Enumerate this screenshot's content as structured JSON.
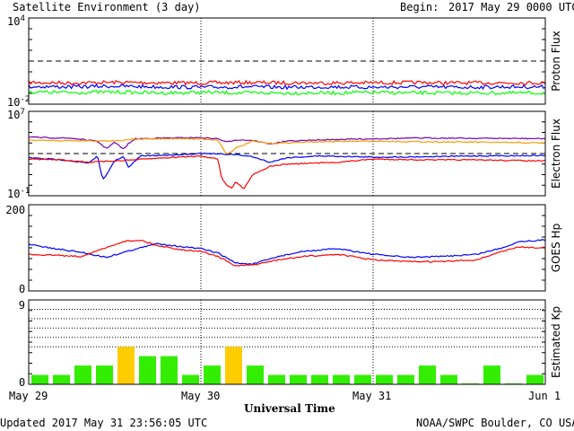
{
  "header": {
    "title": "Satellite Environment (3 day)",
    "begin_label": "Begin:",
    "begin_value": "2017 May 29 0000 UTC"
  },
  "footer": {
    "updated": "Updated 2017 May 31 23:56:05 UTC",
    "credit": "NOAA/SWPC Boulder, CO USA"
  },
  "x_axis": {
    "label": "Universal Time",
    "ticks": [
      "May 29",
      "May 30",
      "May 31",
      "Jun 1"
    ]
  },
  "chart_data": [
    {
      "type": "line",
      "ylabel": "Proton Flux",
      "yscale": "log",
      "ylim": [
        0.01,
        10000
      ],
      "ytick_labels": {
        "top": "10",
        "top_exp": "4",
        "bottom": "10",
        "bottom_exp": "-2"
      },
      "threshold": 10,
      "x_range_days": [
        0,
        3
      ],
      "series": [
        {
          "color": "#ff0000",
          "values": [
            0.32,
            0.3,
            0.33,
            0.31,
            0.3,
            0.32,
            0.31,
            0.3,
            0.31,
            0.32,
            0.3,
            0.31,
            0.3
          ]
        },
        {
          "color": "#0000ff",
          "values": [
            0.17,
            0.16,
            0.18,
            0.16,
            0.15,
            0.16,
            0.15,
            0.16,
            0.15,
            0.16,
            0.15,
            0.16,
            0.16
          ]
        },
        {
          "color": "#00ff00",
          "values": [
            0.07,
            0.065,
            0.07,
            0.06,
            0.065,
            0.06,
            0.06,
            0.06,
            0.065,
            0.06,
            0.06,
            0.06,
            0.06
          ]
        }
      ]
    },
    {
      "type": "line",
      "ylabel": "Electron Flux",
      "yscale": "log",
      "ylim": [
        0.1,
        10000000
      ],
      "ytick_labels": {
        "top": "10",
        "top_exp": "7",
        "bottom": "10",
        "bottom_exp": "-1"
      },
      "threshold": 1000,
      "x_range_days": [
        0,
        3
      ],
      "series": [
        {
          "color": "#7700aa",
          "x": [
            0,
            0.25,
            0.4,
            0.45,
            0.5,
            0.55,
            0.58,
            0.62,
            0.8,
            1.0,
            1.1,
            1.15,
            1.2,
            1.3,
            1.4,
            1.5,
            1.8,
            2.0,
            2.3,
            2.6,
            3.0
          ],
          "values": [
            35000,
            28000,
            14000,
            3000,
            12000,
            2500,
            9000,
            25000,
            30000,
            32000,
            25000,
            12000,
            20000,
            18000,
            8000,
            15000,
            22000,
            25000,
            30000,
            28000,
            26000
          ]
        },
        {
          "color": "#ff9900",
          "x": [
            0,
            0.4,
            0.55,
            0.6,
            0.8,
            1.0,
            1.1,
            1.15,
            1.2,
            1.3,
            1.4,
            1.6,
            1.8,
            2.0,
            2.3,
            2.6,
            3.0
          ],
          "values": [
            18000,
            16000,
            17000,
            22000,
            26000,
            25000,
            18000,
            800,
            3000,
            15000,
            9000,
            12000,
            14000,
            15000,
            13000,
            12000,
            10000
          ]
        },
        {
          "color": "#0000ff",
          "x": [
            0,
            0.2,
            0.35,
            0.4,
            0.43,
            0.5,
            0.55,
            0.58,
            0.65,
            0.8,
            1.0,
            1.1,
            1.2,
            1.3,
            1.4,
            1.5,
            1.7,
            1.9,
            2.0,
            2.3,
            2.6,
            3.0
          ],
          "values": [
            400,
            250,
            120,
            600,
            3,
            200,
            500,
            50,
            600,
            700,
            1000,
            900,
            800,
            500,
            150,
            400,
            600,
            500,
            450,
            500,
            600,
            650
          ]
        },
        {
          "color": "#ff0000",
          "x": [
            0,
            0.2,
            0.35,
            0.5,
            0.6,
            0.8,
            1.0,
            1.1,
            1.12,
            1.15,
            1.18,
            1.2,
            1.25,
            1.3,
            1.4,
            1.5,
            1.8,
            2.0,
            2.3,
            2.6,
            3.0
          ],
          "values": [
            300,
            250,
            150,
            200,
            250,
            400,
            600,
            300,
            5,
            1,
            0.5,
            2,
            0.5,
            10,
            60,
            100,
            150,
            300,
            250,
            250,
            200
          ]
        }
      ]
    },
    {
      "type": "line",
      "ylabel": "GOES Hp",
      "ylim": [
        0,
        200
      ],
      "ytick_labels": {
        "top": "200",
        "bottom": "0"
      },
      "x_range_days": [
        0,
        3
      ],
      "series": [
        {
          "color": "#0000ff",
          "x": [
            0,
            0.15,
            0.3,
            0.4,
            0.45,
            0.6,
            0.75,
            0.9,
            1.0,
            1.1,
            1.2,
            1.3,
            1.45,
            1.6,
            1.8,
            2.0,
            2.2,
            2.4,
            2.6,
            2.75,
            2.85,
            3.0
          ],
          "values": [
            108,
            98,
            90,
            82,
            78,
            95,
            110,
            102,
            98,
            88,
            65,
            62,
            80,
            92,
            98,
            85,
            78,
            80,
            85,
            100,
            115,
            118
          ]
        },
        {
          "color": "#ff0000",
          "x": [
            0,
            0.15,
            0.3,
            0.45,
            0.55,
            0.65,
            0.75,
            0.9,
            1.0,
            1.1,
            1.2,
            1.3,
            1.45,
            1.6,
            1.8,
            2.0,
            2.2,
            2.4,
            2.6,
            2.75,
            2.85,
            3.0
          ],
          "values": [
            85,
            83,
            80,
            100,
            115,
            118,
            105,
            95,
            92,
            80,
            58,
            60,
            72,
            80,
            85,
            72,
            68,
            68,
            72,
            92,
            102,
            100
          ]
        }
      ]
    },
    {
      "type": "bar",
      "ylabel": "Estimated Kp",
      "ylim": [
        0,
        9
      ],
      "ytick_labels": {
        "top": "9",
        "bottom": "0"
      },
      "grid_levels": [
        4,
        5,
        6,
        7,
        8,
        9
      ],
      "x_range_days": [
        0,
        3
      ],
      "bar_width_days": 0.125,
      "values": [
        1,
        1,
        2,
        2,
        4,
        3,
        3,
        1,
        2,
        4,
        2,
        1,
        1,
        1,
        1,
        1,
        1,
        1,
        2,
        1,
        0.1,
        2,
        0.1,
        1
      ],
      "colors": {
        "quiet": "#33ee00",
        "active": "#ffcc00"
      }
    }
  ]
}
